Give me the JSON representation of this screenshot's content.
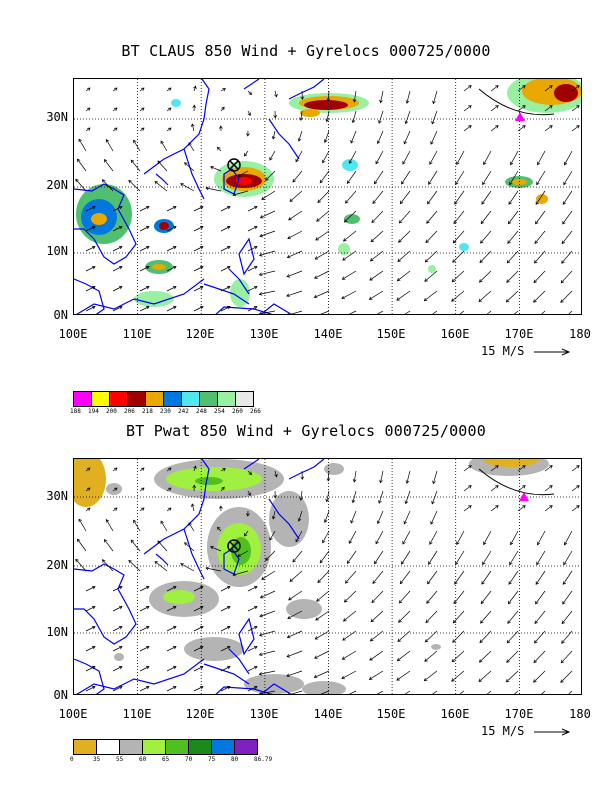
{
  "map1": {
    "title": "BT CLAUS 850 Wind + Gyrelocs 000725/0000",
    "lat_labels": [
      "30N",
      "20N",
      "10N",
      "0N"
    ],
    "lon_labels": [
      "100E",
      "110E",
      "120E",
      "130E",
      "140E",
      "150E",
      "160E",
      "170E",
      "180"
    ],
    "vector_scale_label": "15 M/S",
    "colorbar": {
      "colors": [
        "#ff00ff",
        "#ffff00",
        "#ff0000",
        "#a00000",
        "#e8a800",
        "#0078e0",
        "#50e8f0",
        "#50c070",
        "#98f0a0",
        "#e8e8e8"
      ],
      "ticks": [
        "188",
        "194",
        "200",
        "206",
        "218",
        "230",
        "242",
        "248",
        "254",
        "260",
        "266"
      ]
    }
  },
  "map2": {
    "title": "BT Pwat 850 Wind + Gyrelocs 000725/0000",
    "lat_labels": [
      "30N",
      "20N",
      "10N",
      "0N"
    ],
    "lon_labels": [
      "100E",
      "110E",
      "120E",
      "130E",
      "140E",
      "150E",
      "160E",
      "170E",
      "180"
    ],
    "vector_scale_label": "15 M/S",
    "colorbar": {
      "colors": [
        "#e0b020",
        "#ffffff",
        "#b4b4b4",
        "#a0f040",
        "#50c020",
        "#1a8a1a",
        "#0078e0",
        "#8020c0"
      ],
      "ticks": [
        "0",
        "35",
        "55",
        "60",
        "65",
        "70",
        "75",
        "80",
        "86.79"
      ]
    }
  }
}
